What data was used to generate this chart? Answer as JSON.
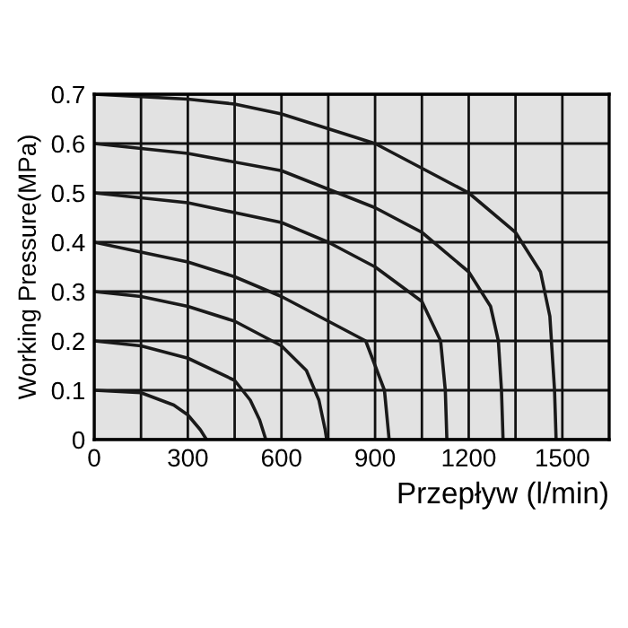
{
  "chart_data": {
    "type": "line",
    "xlabel": "Przepływ (l/min)",
    "ylabel": "Working Pressure(MPa)",
    "xlim": [
      0,
      1650
    ],
    "ylim": [
      0,
      0.7
    ],
    "xticks": [
      0,
      {
        "value": 150,
        "label": null
      },
      300,
      {
        "value": 450,
        "label": null
      },
      600,
      {
        "value": 750,
        "label": null
      },
      900,
      {
        "value": 1050,
        "label": null
      },
      1200,
      {
        "value": 1350,
        "label": null
      },
      1500
    ],
    "yticks": [
      0,
      0.1,
      0.2,
      0.3,
      0.4,
      0.5,
      0.6,
      0.7
    ],
    "grid": true,
    "marker": "none",
    "line_style": "solid",
    "series": [
      {
        "color": "#1a1a1a",
        "x": [
          0,
          150,
          255,
          300,
          340,
          360
        ],
        "values": [
          0.1,
          0.095,
          0.07,
          0.05,
          0.02,
          0
        ]
      },
      {
        "color": "#1a1a1a",
        "x": [
          0,
          150,
          300,
          450,
          500,
          530,
          545,
          550
        ],
        "values": [
          0.2,
          0.19,
          0.165,
          0.12,
          0.08,
          0.04,
          0.01,
          0
        ]
      },
      {
        "color": "#1a1a1a",
        "x": [
          0,
          150,
          300,
          450,
          600,
          680,
          720,
          740,
          745
        ],
        "values": [
          0.3,
          0.29,
          0.27,
          0.24,
          0.19,
          0.14,
          0.08,
          0.02,
          0
        ]
      },
      {
        "color": "#1a1a1a",
        "x": [
          0,
          150,
          300,
          450,
          600,
          750,
          870,
          900,
          930,
          945
        ],
        "values": [
          0.4,
          0.38,
          0.36,
          0.33,
          0.29,
          0.24,
          0.2,
          0.15,
          0.1,
          0
        ]
      },
      {
        "color": "#1a1a1a",
        "x": [
          0,
          300,
          600,
          750,
          900,
          1050,
          1110,
          1125,
          1130
        ],
        "values": [
          0.5,
          0.48,
          0.44,
          0.4,
          0.35,
          0.28,
          0.2,
          0.1,
          0
        ]
      },
      {
        "color": "#1a1a1a",
        "x": [
          0,
          300,
          600,
          900,
          1050,
          1200,
          1270,
          1295,
          1305,
          1310
        ],
        "values": [
          0.6,
          0.58,
          0.545,
          0.47,
          0.42,
          0.34,
          0.27,
          0.2,
          0.1,
          0
        ]
      },
      {
        "color": "#1a1a1a",
        "x": [
          0,
          300,
          450,
          600,
          900,
          1050,
          1200,
          1350,
          1430,
          1460,
          1475,
          1480
        ],
        "values": [
          0.7,
          0.69,
          0.68,
          0.66,
          0.6,
          0.55,
          0.5,
          0.42,
          0.34,
          0.25,
          0.1,
          0
        ]
      }
    ]
  }
}
